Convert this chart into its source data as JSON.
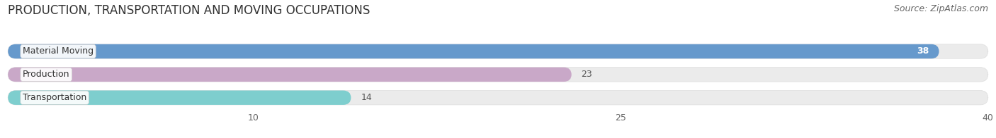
{
  "title": "PRODUCTION, TRANSPORTATION AND MOVING OCCUPATIONS",
  "source": "Source: ZipAtlas.com",
  "categories": [
    "Material Moving",
    "Production",
    "Transportation"
  ],
  "values": [
    38,
    23,
    14
  ],
  "bar_colors": [
    "#6699CC",
    "#C9A8C8",
    "#7ECECE"
  ],
  "value_label_inside": [
    true,
    false,
    false
  ],
  "xlim": [
    0,
    40
  ],
  "xticks": [
    10,
    25,
    40
  ],
  "background_color": "#ffffff",
  "bar_background_color": "#ebebeb",
  "title_fontsize": 12,
  "source_fontsize": 9,
  "label_fontsize": 9,
  "value_fontsize": 9
}
